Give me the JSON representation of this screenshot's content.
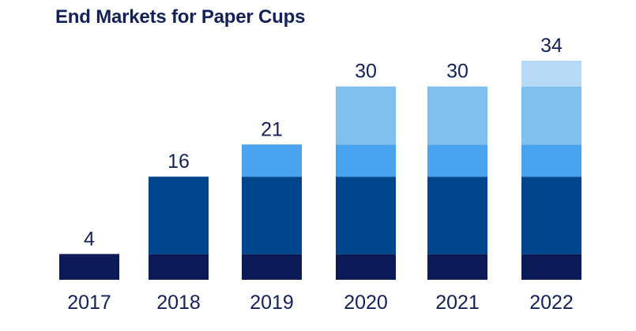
{
  "chart_data": {
    "type": "bar",
    "title": "End Markets for Paper Cups",
    "categories": [
      "2017",
      "2018",
      "2019",
      "2020",
      "2021",
      "2022"
    ],
    "totals": [
      4,
      16,
      21,
      30,
      30,
      34
    ],
    "series": [
      {
        "color": "#0c1a57",
        "values": [
          4,
          4,
          4,
          4,
          4,
          4
        ]
      },
      {
        "color": "#00468c",
        "values": [
          0,
          12,
          12,
          12,
          12,
          12
        ]
      },
      {
        "color": "#4aa3ee",
        "values": [
          0,
          0,
          5,
          5,
          5,
          5
        ]
      },
      {
        "color": "#80c0ef",
        "values": [
          0,
          0,
          0,
          9,
          9,
          9
        ]
      },
      {
        "color": "#b8d9f5",
        "values": [
          0,
          0,
          0,
          0,
          0,
          4
        ]
      }
    ],
    "ylim": [
      0,
      34
    ],
    "grid": false,
    "legend": "none"
  }
}
